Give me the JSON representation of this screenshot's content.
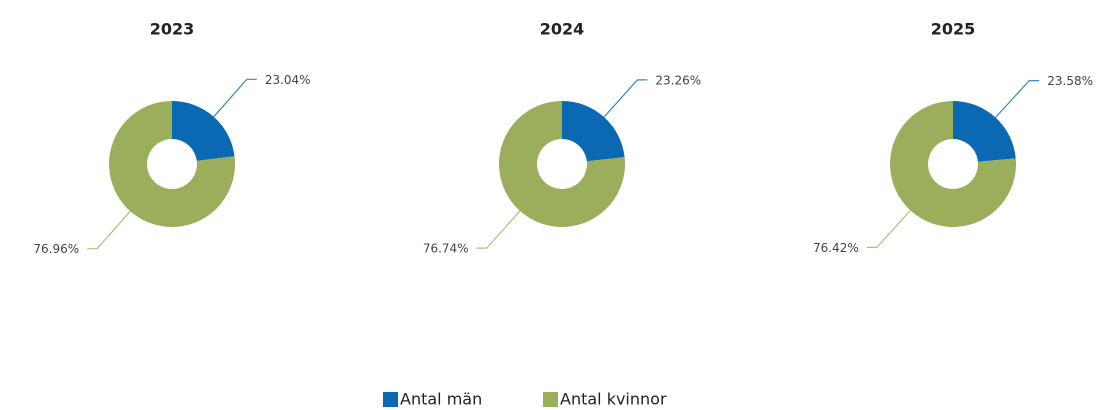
{
  "legend": [
    {
      "name": "Antal män",
      "color": "#0b68b3"
    },
    {
      "name": "Antal kvinnor",
      "color": "#9bae5b"
    }
  ],
  "chart_data": [
    {
      "type": "pie",
      "title": "2023",
      "values": [
        23.04,
        76.96
      ],
      "value_labels": [
        "23.04%",
        "76.96%"
      ]
    },
    {
      "type": "pie",
      "title": "2024",
      "values": [
        23.26,
        76.74
      ],
      "value_labels": [
        "23.26%",
        "76.74%"
      ]
    },
    {
      "type": "pie",
      "title": "2025",
      "values": [
        23.58,
        76.42
      ],
      "value_labels": [
        "23.58%",
        "76.42%"
      ]
    }
  ]
}
